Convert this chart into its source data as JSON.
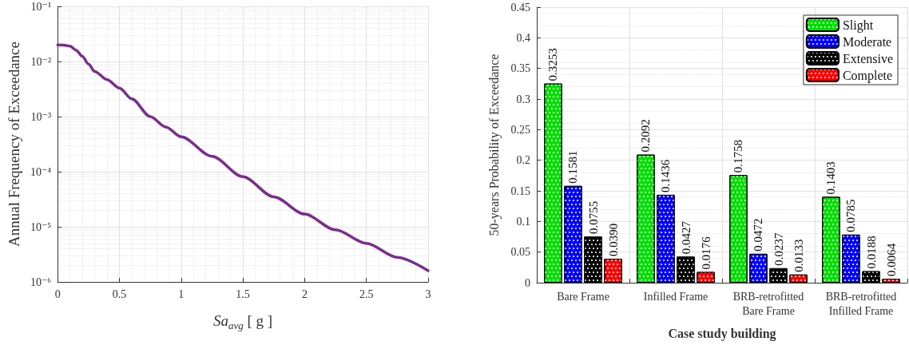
{
  "chart_data": [
    {
      "type": "line",
      "xlabel": "Sa$_{avg}$ [ g ]",
      "ylabel": "Annual Frequency of Exceedance",
      "log": "y",
      "grid": true,
      "line_style": "solid",
      "marker": "none",
      "xlim": [
        0,
        3
      ],
      "xticks": [
        0,
        0.5,
        1,
        1.5,
        2,
        2.5,
        3
      ],
      "ylim": [
        1e-06,
        0.1
      ],
      "yticks": [
        {
          "value": 1e-06,
          "label": "10⁻⁶"
        },
        {
          "value": 1e-05,
          "label": "10⁻⁵"
        },
        {
          "value": 0.0001,
          "label": "10⁻⁴"
        },
        {
          "value": 0.001,
          "label": "10⁻³"
        },
        {
          "value": 0.01,
          "label": "10⁻²"
        },
        {
          "value": 0.1,
          "label": "10⁻¹"
        }
      ],
      "x": [
        0,
        0.05,
        0.1,
        0.15,
        0.2,
        0.25,
        0.3,
        0.4,
        0.5,
        0.6,
        0.75,
        0.875,
        1,
        1.25,
        1.5,
        1.75,
        2,
        2.25,
        2.5,
        2.75,
        3
      ],
      "series": [
        {
          "color": "#7b2d8e",
          "values": [
            0.02,
            0.0199,
            0.019,
            0.016,
            0.0124,
            0.009,
            0.0066,
            0.0047,
            0.0033,
            0.0021,
            0.001,
            0.00065,
            0.00043,
            0.00019,
            8.1e-05,
            3.5e-05,
            1.7e-05,
            8.8e-06,
            5e-06,
            2.8e-06,
            1.6e-06
          ]
        }
      ]
    },
    {
      "type": "bar",
      "xlabel": "Case study building",
      "ylabel": "50-years Probability of Exceedance",
      "grid": true,
      "legend": "top right",
      "categories": [
        "Bare Frame",
        "Infilled Frame",
        "BRB-retrofitted\nBare Frame",
        "BRB-retrofitted\nInfilled Frame"
      ],
      "ylim": [
        0,
        0.45
      ],
      "yticks": [
        0,
        0.05,
        0.1,
        0.15,
        0.2,
        0.25,
        0.3,
        0.35,
        0.4,
        0.45
      ],
      "series": [
        {
          "name": "Slight",
          "color": "#00e000",
          "values": [
            0.3253,
            0.2092,
            0.1758,
            0.1403
          ],
          "value_labels": [
            "0.3253",
            "0.2092",
            "0.1758",
            "0.1403"
          ]
        },
        {
          "name": "Moderate",
          "color": "#0000ff",
          "values": [
            0.1581,
            0.1436,
            0.0472,
            0.0785
          ],
          "value_labels": [
            "0.1581",
            "0.1436",
            "0.0472",
            "0.0785"
          ]
        },
        {
          "name": "Extensive",
          "color": "#000000",
          "values": [
            0.0755,
            0.0427,
            0.0237,
            0.0188
          ],
          "value_labels": [
            "0.0755",
            "0.0427",
            "0.0237",
            "0.0188"
          ]
        },
        {
          "name": "Complete",
          "color": "#ff0000",
          "values": [
            0.039,
            0.0176,
            0.0133,
            0.0064
          ],
          "value_labels": [
            "0.0390",
            "0.0176",
            "0.0133",
            "0.0064"
          ]
        }
      ]
    }
  ]
}
